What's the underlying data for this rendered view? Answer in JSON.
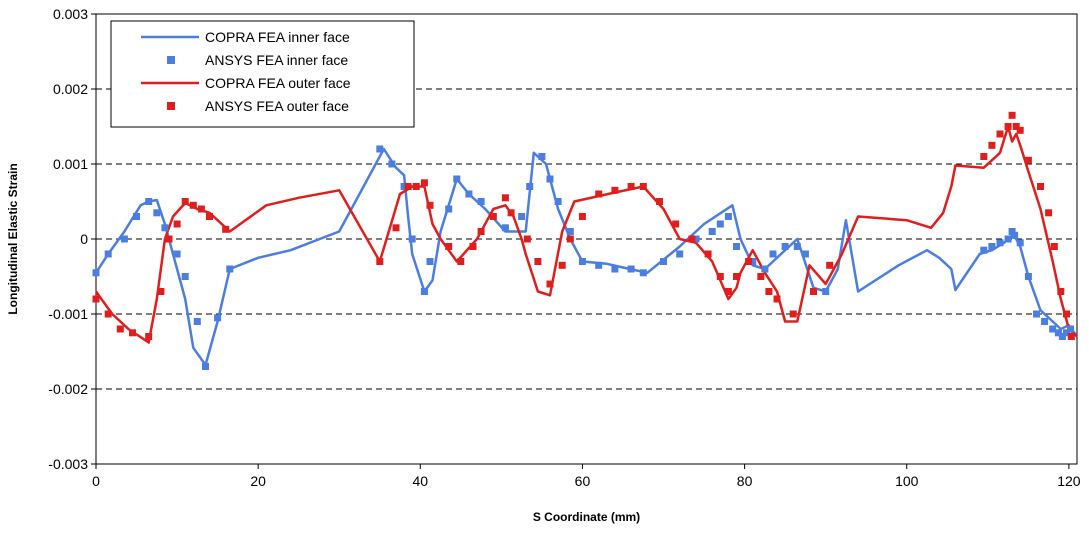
{
  "chart_data": {
    "type": "line",
    "xlabel": "S Coordinate (mm)",
    "ylabel": "Longitudinal Elastic Strain",
    "xlim": [
      0,
      121
    ],
    "ylim": [
      -0.003,
      0.003
    ],
    "x_ticks": [
      "0",
      "20",
      "40",
      "60",
      "80",
      "100",
      "120"
    ],
    "y_ticks": [
      "-0.003",
      "-0.002",
      "-0.001",
      "0",
      "0.001",
      "0.002",
      "0.003"
    ],
    "grid": "horizontal dashed",
    "legend_position": "top-left",
    "series": [
      {
        "name": "COPRA FEA inner face",
        "kind": "line",
        "color": "#4a7ee0",
        "x": [
          0,
          1.5,
          3.5,
          5.5,
          6.5,
          7.5,
          8.5,
          9.5,
          11,
          12,
          13.5,
          15,
          16.5,
          20,
          24,
          30,
          35.5,
          37,
          38,
          38.5,
          39,
          40.5,
          41.5,
          42.5,
          44.5,
          46,
          48,
          50.5,
          53,
          54,
          55.5,
          57,
          58.5,
          60,
          63,
          65,
          68,
          72,
          75,
          78.5,
          79.5,
          81,
          82.5,
          85,
          86.5,
          88.5,
          90,
          91.5,
          92.5,
          94,
          99,
          102.5,
          104,
          105.5,
          106,
          109,
          110.5,
          112,
          113,
          113.5,
          114,
          115,
          116.5,
          118,
          119,
          120,
          121
        ],
        "y": [
          -0.00045,
          -0.0002,
          0.0001,
          0.00045,
          0.0005,
          0.00052,
          0.0002,
          -0.0002,
          -0.0008,
          -0.00145,
          -0.00168,
          -0.0011,
          -0.0004,
          -0.00025,
          -0.00015,
          0.0001,
          0.0012,
          0.00095,
          0.00085,
          0.0003,
          -0.0002,
          -0.0007,
          -0.00055,
          0.0001,
          0.0008,
          0.0006,
          0.0004,
          0.0001,
          0.0001,
          0.00115,
          0.001,
          0.0004,
          0.0,
          -0.0003,
          -0.00033,
          -0.00038,
          -0.00045,
          -0.0001,
          0.0002,
          0.00045,
          0.0,
          -0.00035,
          -0.0004,
          -0.00015,
          0.0,
          -0.00065,
          -0.0007,
          -0.0004,
          0.00025,
          -0.0007,
          -0.00035,
          -0.00015,
          -0.00025,
          -0.0004,
          -0.00068,
          -0.0002,
          -0.00015,
          -5e-05,
          5e-05,
          0.0,
          -0.0001,
          -0.0005,
          -0.00095,
          -0.0011,
          -0.0012,
          -0.00115,
          -0.0013
        ]
      },
      {
        "name": "ANSYS FEA inner face",
        "kind": "markers",
        "color": "#4a7ee0",
        "x": [
          0,
          1.5,
          3.5,
          5,
          6.5,
          7.5,
          8.5,
          10,
          11,
          12.5,
          13.5,
          15,
          16.5,
          35,
          36.5,
          38,
          39,
          40.5,
          41.2,
          43.5,
          44.5,
          46,
          47.5,
          50.5,
          52.5,
          53.5,
          55,
          56,
          57,
          58.5,
          60,
          62,
          64,
          66,
          67.5,
          70,
          72,
          74,
          76,
          77,
          78,
          79,
          81,
          82.5,
          83.5,
          85,
          86.5,
          87.5,
          90,
          109.5,
          110.5,
          111.5,
          112.5,
          113,
          113.3,
          114,
          115,
          116,
          117,
          118,
          118.7,
          119.2,
          119.7,
          120.2
        ],
        "y": [
          -0.00045,
          -0.0002,
          0.0,
          0.0003,
          0.0005,
          0.00035,
          0.00015,
          -0.0002,
          -0.0005,
          -0.0011,
          -0.0017,
          -0.00105,
          -0.0004,
          0.0012,
          0.001,
          0.0007,
          0.0,
          -0.0007,
          -0.0003,
          0.0004,
          0.0008,
          0.0006,
          0.0005,
          0.00015,
          0.0003,
          0.0007,
          0.0011,
          0.0008,
          0.0005,
          0.0001,
          -0.0003,
          -0.00035,
          -0.0004,
          -0.0004,
          -0.00045,
          -0.0003,
          -0.0002,
          0.0,
          0.0001,
          0.0002,
          0.0003,
          -0.0001,
          -0.0003,
          -0.0004,
          -0.0002,
          -0.0001,
          -0.0001,
          -0.0002,
          -0.0007,
          -0.00015,
          -0.0001,
          -5e-05,
          0.0,
          0.0001,
          5e-05,
          -5e-05,
          -0.0005,
          -0.001,
          -0.0011,
          -0.0012,
          -0.00125,
          -0.0013,
          -0.00125,
          -0.0012
        ]
      },
      {
        "name": "COPRA FEA outer face",
        "kind": "line",
        "color": "#e01e1e",
        "x": [
          0,
          2,
          4,
          6.5,
          7.5,
          8.5,
          9.5,
          11,
          12.5,
          14,
          15,
          16.5,
          21,
          25,
          30,
          35,
          37.5,
          39,
          40.5,
          41.5,
          42.5,
          44.5,
          47,
          49,
          50.5,
          51.5,
          52.5,
          53,
          54.5,
          56,
          57.5,
          59,
          64,
          67.5,
          70,
          72,
          74,
          76,
          78,
          79,
          79.5,
          81,
          82.5,
          84,
          85,
          86.5,
          88,
          90,
          92,
          94,
          100,
          103,
          104.5,
          105.5,
          106,
          109.5,
          111.5,
          112.5,
          113,
          113.5,
          114,
          115,
          116.5,
          118,
          119,
          120,
          121
        ],
        "y": [
          -0.0007,
          -0.001,
          -0.0012,
          -0.00138,
          -0.0008,
          0.0,
          0.0003,
          0.00048,
          0.0004,
          0.00035,
          0.00025,
          0.0001,
          0.00045,
          0.00055,
          0.00065,
          -0.0003,
          0.0006,
          0.0007,
          0.0007,
          0.0002,
          0.0,
          -0.0003,
          0.0,
          0.0004,
          0.00045,
          0.0003,
          0.0,
          -0.0002,
          -0.0007,
          -0.00075,
          0.0001,
          0.0005,
          0.00062,
          0.0007,
          0.0004,
          0.0,
          -5e-05,
          -0.0003,
          -0.0008,
          -0.00065,
          -0.00045,
          -0.00015,
          -0.00045,
          -0.0007,
          -0.0011,
          -0.0011,
          -0.00035,
          -0.0006,
          -0.0002,
          0.0003,
          0.00025,
          0.00015,
          0.00035,
          0.0007,
          0.00098,
          0.00095,
          0.00115,
          0.0015,
          0.0013,
          0.0014,
          0.00125,
          0.0009,
          0.0004,
          -0.0003,
          -0.0008,
          -0.0012,
          -0.0013
        ]
      },
      {
        "name": "ANSYS FEA outer face",
        "kind": "markers",
        "color": "#e01e1e",
        "x": [
          0,
          1.5,
          3,
          4.5,
          6.5,
          8,
          9,
          10,
          11,
          12,
          13,
          14,
          16,
          35,
          37,
          38.5,
          39.5,
          40.5,
          41.2,
          43.5,
          45,
          46.5,
          47.5,
          49,
          50.5,
          51.2,
          53.2,
          54.5,
          56,
          57.5,
          58.5,
          60,
          62,
          64,
          66,
          67.5,
          69.5,
          71.5,
          73.5,
          75.5,
          77,
          78,
          79,
          80.5,
          82,
          83,
          84,
          86,
          88.5,
          90.5,
          109.5,
          110.5,
          111.5,
          112.5,
          113,
          113.5,
          114,
          115,
          116.5,
          117.5,
          118.2,
          119,
          119.7,
          120.3
        ],
        "y": [
          -0.0008,
          -0.001,
          -0.0012,
          -0.00125,
          -0.0013,
          -0.0007,
          0.0,
          0.0002,
          0.0005,
          0.00045,
          0.0004,
          0.0003,
          0.00013,
          -0.0003,
          0.00015,
          0.0007,
          0.0007,
          0.00075,
          0.00045,
          -0.0001,
          -0.0003,
          -0.0001,
          0.0001,
          0.0003,
          0.00055,
          0.00035,
          0.0,
          -0.0003,
          -0.0006,
          -0.00035,
          0.0,
          0.0003,
          0.0006,
          0.00065,
          0.0007,
          0.0007,
          0.0005,
          0.0002,
          0.0,
          -0.0002,
          -0.0005,
          -0.0007,
          -0.0005,
          -0.0003,
          -0.0005,
          -0.0007,
          -0.0008,
          -0.001,
          -0.0007,
          -0.00035,
          0.0011,
          0.00125,
          0.0014,
          0.0015,
          0.00165,
          0.0015,
          0.00145,
          0.00105,
          0.0007,
          0.00035,
          -0.0001,
          -0.0007,
          -0.001,
          -0.0013
        ]
      }
    ]
  }
}
